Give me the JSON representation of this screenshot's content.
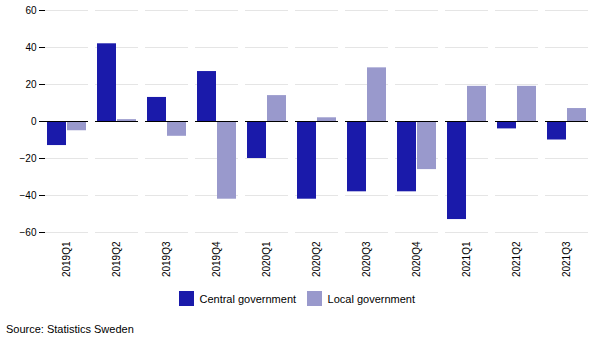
{
  "chart_data": {
    "type": "bar",
    "categories": [
      "2019Q1",
      "2019Q2",
      "2019Q3",
      "2019Q4",
      "2020Q1",
      "2020Q2",
      "2020Q3",
      "2020Q4",
      "2021Q1",
      "2021Q2",
      "2021Q3"
    ],
    "series": [
      {
        "name": "Central government",
        "color": "#1a1aaa",
        "values": [
          -13,
          42,
          13,
          27,
          -20,
          -42,
          -38,
          -38,
          -53,
          -4,
          -10
        ]
      },
      {
        "name": "Local government",
        "color": "#9999cc",
        "values": [
          -5,
          1,
          -8,
          -42,
          14,
          2,
          29,
          -26,
          19,
          19,
          7
        ]
      }
    ],
    "ylim": [
      -60,
      60
    ],
    "yticks": [
      -60,
      -40,
      -20,
      0,
      20,
      40,
      60
    ],
    "grid": true,
    "legend": "bottom",
    "caption": "Source: Statistics Sweden"
  }
}
